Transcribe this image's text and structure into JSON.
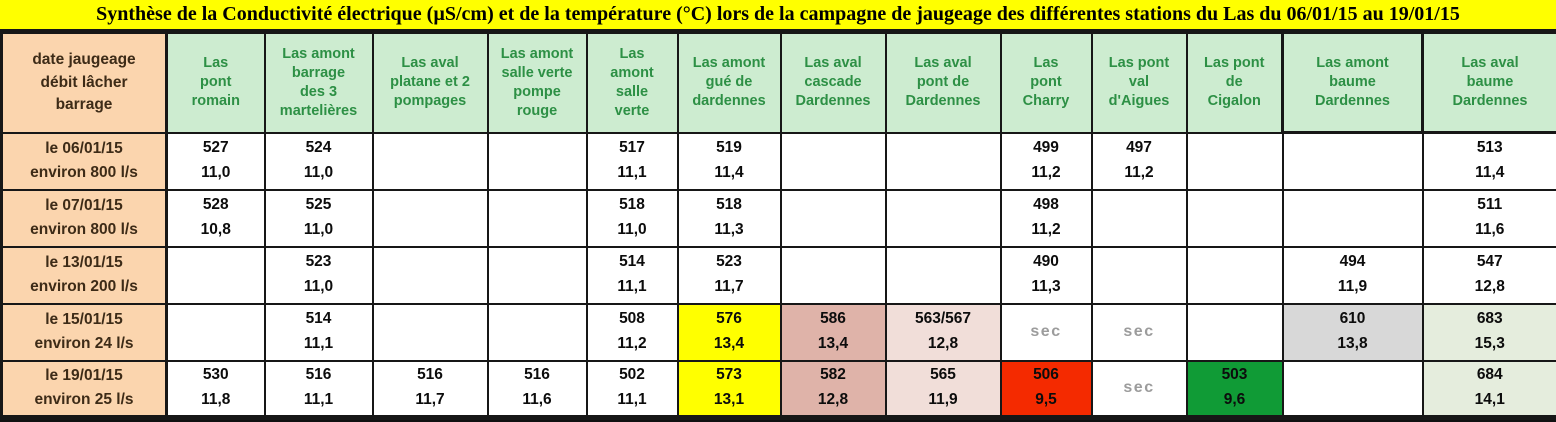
{
  "title": {
    "text": "Synthèse de la Conductivité électrique (µS/cm) et de la température (°C) lors de la campagne de jaugeage des différentes stations du Las du 06/01/15 au 19/01/15"
  },
  "colors": {
    "title_bg": "#ffff00",
    "title_text": "#000000",
    "border": "#171717",
    "header_date_bg": "#fbd5ae",
    "header_date_text": "#3d2b17",
    "header_station_bg": "#cdecd0",
    "header_station_text": "#2d9045",
    "value_text": "#0c0c0c",
    "sec_text": "#9c9c9c",
    "yellow": "#ffff00",
    "pink": "#dfb3a9",
    "light_pink": "#f1ded9",
    "red": "#f42a00",
    "green": "#109b36",
    "gray": "#d8d8d8",
    "light_green": "#e5eddd"
  },
  "table": {
    "corner_header": "date jaugeage\ndébit lâcher\nbarrage",
    "stations": [
      "Las\npont\nromain",
      "Las amont\nbarrage\ndes 3\nmartelières",
      "Las aval\nplatane et 2\npompages",
      "Las amont\nsalle verte\npompe\nrouge",
      "Las\namont\nsalle\nverte",
      "Las amont\ngué de\ndardennes",
      "Las aval\ncascade\nDardennes",
      "Las aval\npont de\nDardennes",
      "Las\npont\nCharry",
      "Las pont\nval\nd'Aigues",
      "Las pont\nde\nCigalon",
      "Las amont\nbaume\nDardennes",
      "Las aval\nbaume\nDardennes"
    ],
    "rows": [
      {
        "date": "le 06/01/15\nenviron 800 l/s",
        "cells": [
          {
            "cond": "527",
            "temp": "11,0"
          },
          {
            "cond": "524",
            "temp": "11,0"
          },
          null,
          null,
          {
            "cond": "517",
            "temp": "11,1"
          },
          {
            "cond": "519",
            "temp": "11,4"
          },
          null,
          null,
          {
            "cond": "499",
            "temp": "11,2"
          },
          {
            "cond": "497",
            "temp": "11,2"
          },
          null,
          null,
          {
            "cond": "513",
            "temp": "11,4"
          }
        ]
      },
      {
        "date": "le 07/01/15\nenviron 800 l/s",
        "cells": [
          {
            "cond": "528",
            "temp": "10,8"
          },
          {
            "cond": "525",
            "temp": "11,0"
          },
          null,
          null,
          {
            "cond": "518",
            "temp": "11,0"
          },
          {
            "cond": "518",
            "temp": "11,3"
          },
          null,
          null,
          {
            "cond": "498",
            "temp": "11,2"
          },
          null,
          null,
          null,
          {
            "cond": "511",
            "temp": "11,6"
          }
        ]
      },
      {
        "date": "le 13/01/15\nenviron 200 l/s",
        "cells": [
          null,
          {
            "cond": "523",
            "temp": "11,0"
          },
          null,
          null,
          {
            "cond": "514",
            "temp": "11,1"
          },
          {
            "cond": "523",
            "temp": "11,7"
          },
          null,
          null,
          {
            "cond": "490",
            "temp": "11,3"
          },
          null,
          null,
          {
            "cond": "494",
            "temp": "11,9"
          },
          {
            "cond": "547",
            "temp": "12,8"
          }
        ]
      },
      {
        "date": "le 15/01/15\nenviron 24 l/s",
        "cells": [
          null,
          {
            "cond": "514",
            "temp": "11,1"
          },
          null,
          null,
          {
            "cond": "508",
            "temp": "11,2"
          },
          {
            "cond": "576",
            "temp": "13,4",
            "bg": "yellow"
          },
          {
            "cond": "586",
            "temp": "13,4",
            "bg": "pink"
          },
          {
            "cond": "563/567",
            "temp": "12,8",
            "bg": "light_pink"
          },
          {
            "text": "sec"
          },
          {
            "text": "sec"
          },
          null,
          {
            "cond": "610",
            "temp": "13,8",
            "bg": "gray"
          },
          {
            "cond": "683",
            "temp": "15,3",
            "bg": "light_green"
          }
        ]
      },
      {
        "date": "le 19/01/15\nenviron 25 l/s",
        "cells": [
          {
            "cond": "530",
            "temp": "11,8"
          },
          {
            "cond": "516",
            "temp": "11,1"
          },
          {
            "cond": "516",
            "temp": "11,7"
          },
          {
            "cond": "516",
            "temp": "11,6"
          },
          {
            "cond": "502",
            "temp": "11,1"
          },
          {
            "cond": "573",
            "temp": "13,1",
            "bg": "yellow"
          },
          {
            "cond": "582",
            "temp": "12,8",
            "bg": "pink"
          },
          {
            "cond": "565",
            "temp": "11,9",
            "bg": "light_pink"
          },
          {
            "cond": "506",
            "temp": "9,5",
            "bg": "red"
          },
          {
            "text": "sec"
          },
          {
            "cond": "503",
            "temp": "9,6",
            "bg": "green"
          },
          null,
          {
            "cond": "684",
            "temp": "14,1",
            "bg": "light_green"
          }
        ]
      }
    ]
  }
}
